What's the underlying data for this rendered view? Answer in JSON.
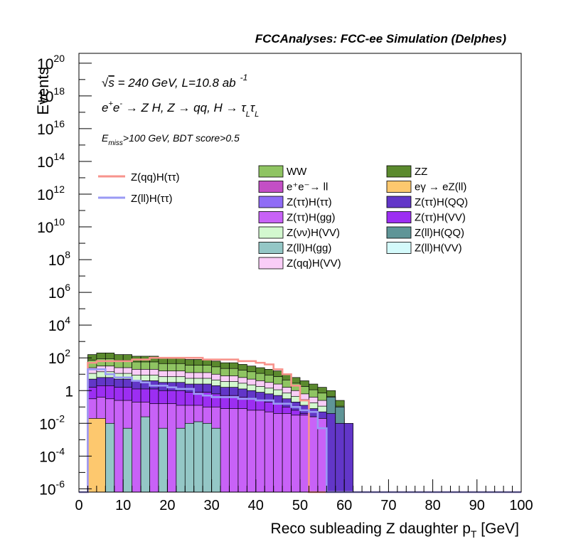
{
  "header": {
    "title": "FCCAnalyses: FCC-ee Simulation (Delphes)"
  },
  "annotations": {
    "line1_prefix": "√",
    "line1_s": "s",
    "line1_rest": " = 240 GeV, L=10.8 ab",
    "line1_sup": "-1",
    "line2_a": "e",
    "line2_a_sup": "+",
    "line2_b": "e",
    "line2_b_sup": "-",
    "line2_rest": " → Z H, Z  → qq, H  → τ",
    "line2_sub1": "L",
    "line2_tau2": "τ",
    "line2_sub2": "L",
    "line3_E": "E",
    "line3_sub": "miss",
    "line3_rest": ">100 GeV, BDT score>0.5"
  },
  "chart_data": {
    "type": "bar",
    "subtype": "stacked-histogram-log",
    "xlabel": "Reco subleading Z daughter p",
    "xlabel_sub": "T",
    "xlabel_unit": " [GeV]",
    "ylabel": "Events",
    "xlim": [
      0,
      100
    ],
    "ylim_log10": [
      -6.2,
      20.6
    ],
    "x_ticks": [
      "0",
      "10",
      "20",
      "30",
      "40",
      "50",
      "60",
      "70",
      "80",
      "90",
      "100"
    ],
    "y_ticks": [
      {
        "base": "10",
        "exp": "20",
        "v": 20
      },
      {
        "base": "10",
        "exp": "18",
        "v": 18
      },
      {
        "base": "10",
        "exp": "16",
        "v": 16
      },
      {
        "base": "10",
        "exp": "14",
        "v": 14
      },
      {
        "base": "10",
        "exp": "12",
        "v": 12
      },
      {
        "base": "10",
        "exp": "10",
        "v": 10
      },
      {
        "base": "10",
        "exp": "8",
        "v": 8
      },
      {
        "base": "10",
        "exp": "6",
        "v": 6
      },
      {
        "base": "10",
        "exp": "4",
        "v": 4
      },
      {
        "base": "10",
        "exp": "2",
        "v": 2
      },
      {
        "base": "1",
        "exp": "",
        "v": 0
      },
      {
        "base": "10",
        "exp": "-2",
        "v": -2
      },
      {
        "base": "10",
        "exp": "-4",
        "v": -4
      },
      {
        "base": "10",
        "exp": "-6",
        "v": -6
      }
    ],
    "bin_edges": [
      0,
      2,
      4,
      6,
      8,
      10,
      12,
      14,
      16,
      18,
      20,
      22,
      24,
      26,
      28,
      30,
      32,
      34,
      36,
      38,
      40,
      42,
      44,
      46,
      48,
      50,
      52,
      54,
      56,
      58,
      60,
      62
    ],
    "stack_top_log10": [
      -6.2,
      2.2,
      2.3,
      2.3,
      2.2,
      2.2,
      2.1,
      2.1,
      2.1,
      2.0,
      2.0,
      2.0,
      1.9,
      1.9,
      1.9,
      1.8,
      1.7,
      1.7,
      1.6,
      1.5,
      1.4,
      1.3,
      1.2,
      1.0,
      0.8,
      0.6,
      0.4,
      0.2,
      0.0,
      -0.6,
      -6.2
    ],
    "layers": [
      {
        "name": "ZZ",
        "color": "#5b8a2e",
        "top_offset": 0.0
      },
      {
        "name": "WW",
        "color": "#8fc462",
        "top_offset": -0.35
      },
      {
        "name": "Z(qq)H(VV)",
        "color": "#f9cdf7",
        "top_offset": -0.8
      },
      {
        "name": "Z(νν)H(VV)",
        "color": "#d3f8cf",
        "top_offset": -1.15
      },
      {
        "name": "Z(ττ)H(QQ)",
        "color": "#6236c8",
        "top_offset": -1.5
      },
      {
        "name": "Z(ττ)H(VV)",
        "color": "#9c2ef2",
        "top_offset": -2.0
      }
    ],
    "ztt_hgg_log10": [
      -6.2,
      -0.5,
      -0.4,
      -0.5,
      -0.6,
      -0.6,
      -0.7,
      -0.7,
      -0.8,
      -0.8,
      -0.8,
      -0.9,
      -0.9,
      -0.9,
      -1.0,
      -1.0,
      -1.1,
      -1.1,
      -1.1,
      -1.2,
      -1.2,
      -1.3,
      -1.4,
      -1.4,
      -1.5,
      -1.5,
      -1.6,
      -1.7,
      -1.9,
      -2.3,
      -6.2
    ],
    "zll_hgg_bins": [
      {
        "x0": 6,
        "x1": 8,
        "v": -2.0
      },
      {
        "x0": 10,
        "x1": 12,
        "v": -2.3
      },
      {
        "x0": 14,
        "x1": 16,
        "v": -1.6
      },
      {
        "x0": 18,
        "x1": 20,
        "v": -2.3
      },
      {
        "x0": 22,
        "x1": 24,
        "v": -2.3
      },
      {
        "x0": 24,
        "x1": 26,
        "v": -2.0
      },
      {
        "x0": 26,
        "x1": 28,
        "v": -1.9
      },
      {
        "x0": 28,
        "x1": 30,
        "v": -2.0
      },
      {
        "x0": 30,
        "x1": 32,
        "v": -2.3
      }
    ],
    "eg_ezll_bin": {
      "x0": 2,
      "x1": 6,
      "v": -1.7
    },
    "zll_hqq_tail": [
      {
        "x0": 56,
        "x1": 58,
        "v": -1.4
      },
      {
        "x0": 58,
        "x1": 60,
        "v": -2.0
      }
    ],
    "ztt_hqq_tail": [
      {
        "x0": 56,
        "x1": 58,
        "v": -2.4
      },
      {
        "x0": 58,
        "x1": 60,
        "v": -2.8
      },
      {
        "x0": 60,
        "x1": 62,
        "v": -3.2
      }
    ],
    "series": [
      {
        "name": "Z(qq)H(ττ)",
        "color": "#f7938c",
        "style": "line",
        "values_log10": [
          -6.2,
          1.7,
          1.8,
          1.8,
          1.8,
          1.8,
          1.9,
          1.9,
          2.0,
          2.0,
          2.0,
          2.0,
          2.0,
          2.0,
          1.9,
          1.9,
          1.9,
          1.9,
          1.8,
          1.8,
          1.7,
          1.6,
          1.3,
          1.0,
          0.3,
          -0.6,
          -6.2,
          -6.2,
          -6.2,
          -6.2,
          -6.2
        ]
      },
      {
        "name": "Z(ll)H(ττ)",
        "color": "#9a9af4",
        "style": "line",
        "values_log10": [
          -6.2,
          1.3,
          1.3,
          1.0,
          0.8,
          0.8,
          0.6,
          0.5,
          0.3,
          0.3,
          0.2,
          0.1,
          0.1,
          -0.2,
          -0.3,
          -0.4,
          -0.4,
          -0.4,
          -0.5,
          -0.5,
          -0.6,
          -0.6,
          -0.8,
          -0.8,
          -1.0,
          -1.2,
          -1.3,
          -2.3,
          -6.2,
          -6.2,
          -6.2
        ]
      }
    ],
    "legend_left": [
      {
        "name": "Z(qq)H(ττ)",
        "color": "#f7938c"
      },
      {
        "name": "Z(ll)H(ττ)",
        "color": "#9a9af4"
      }
    ],
    "legend_center": [
      {
        "name": "WW",
        "color": "#8fc462"
      },
      {
        "name": "e⁺e⁻→ ll",
        "color": "#c34fc5"
      },
      {
        "name": "Z(ττ)H(ττ)",
        "color": "#8f6cf6"
      },
      {
        "name": "Z(ττ)H(gg)",
        "color": "#c862f7"
      },
      {
        "name": "Z(νν)H(VV)",
        "color": "#d3f8cf"
      },
      {
        "name": "Z(ll)H(gg)",
        "color": "#94c7c6"
      },
      {
        "name": "Z(qq)H(VV)",
        "color": "#f9cdf7"
      }
    ],
    "legend_right": [
      {
        "name": "ZZ",
        "color": "#5b8a2e"
      },
      {
        "name": "eγ → eZ(ll)",
        "color": "#fdc86e"
      },
      {
        "name": "Z(ττ)H(QQ)",
        "color": "#6236c8"
      },
      {
        "name": "Z(ττ)H(VV)",
        "color": "#9c2ef2"
      },
      {
        "name": "Z(ll)H(QQ)",
        "color": "#5f9597"
      },
      {
        "name": "Z(ll)H(VV)",
        "color": "#d4fafb"
      }
    ]
  }
}
